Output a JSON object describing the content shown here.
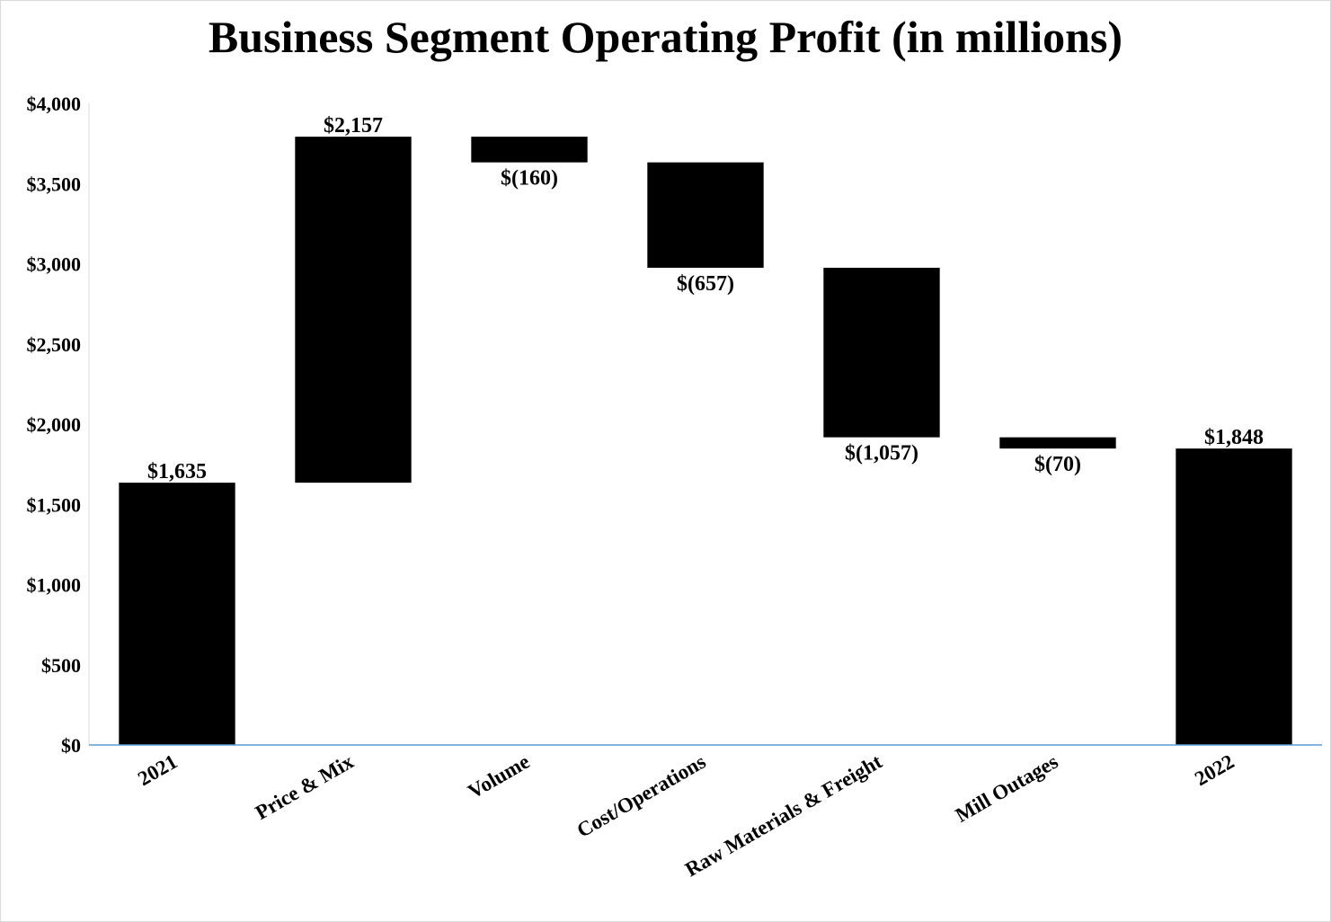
{
  "chart_data": {
    "type": "bar",
    "subtype": "waterfall",
    "title": "Business Segment Operating Profit (in millions)",
    "xlabel": "",
    "ylabel": "",
    "ylim": [
      0,
      4000
    ],
    "y_ticks": [
      0,
      500,
      1000,
      1500,
      2000,
      2500,
      3000,
      3500,
      4000
    ],
    "y_tick_labels": [
      "$0",
      "$500",
      "$1,000",
      "$1,500",
      "$2,000",
      "$2,500",
      "$3,000",
      "$3,500",
      "$4,000"
    ],
    "grid": false,
    "legend": "none",
    "categories": [
      "2021",
      "Price & Mix",
      "Volume",
      "Cost/Operations",
      "Raw Materials & Freight",
      "Mill Outages",
      "2022"
    ],
    "values": [
      1635,
      2157,
      -160,
      -657,
      -1057,
      -70,
      1848
    ],
    "kinds": [
      "total",
      "delta",
      "delta",
      "delta",
      "delta",
      "delta",
      "total"
    ],
    "data_labels": [
      "$1,635",
      "$2,157",
      "$(160)",
      "$(657)",
      "$(1,057)",
      "$(70)",
      "$1,848"
    ],
    "bar_color": "#000000",
    "axis_color": "#5b9bd5"
  }
}
